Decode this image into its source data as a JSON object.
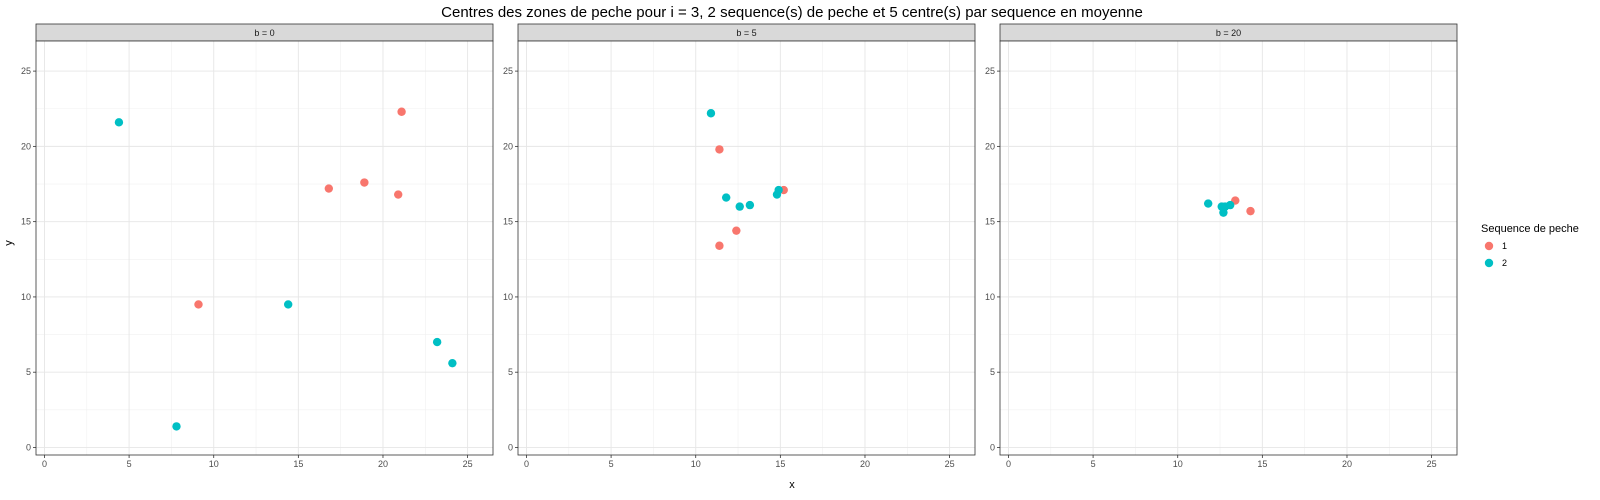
{
  "chart_data": {
    "type": "scatter",
    "title": "Centres des zones de peche pour i = 3, 2 sequence(s) de peche et 5 centre(s) par sequence en moyenne",
    "xlabel": "x",
    "ylabel": "y",
    "xlim": [
      -0.5,
      26.5
    ],
    "ylim": [
      -0.5,
      27
    ],
    "xticks": [
      0,
      5,
      10,
      15,
      20,
      25
    ],
    "yticks": [
      0,
      5,
      10,
      15,
      20,
      25
    ],
    "grid": true,
    "legend": {
      "title": "Sequence de peche",
      "position": "right",
      "entries": [
        {
          "label": "1",
          "color": "#F8766D"
        },
        {
          "label": "2",
          "color": "#00BFC4"
        }
      ]
    },
    "facets": [
      {
        "label": "b = 0",
        "series": [
          {
            "name": "1",
            "color": "#F8766D",
            "points": [
              [
                21.1,
                22.3
              ],
              [
                16.8,
                17.2
              ],
              [
                18.9,
                17.6
              ],
              [
                20.9,
                16.8
              ],
              [
                9.1,
                9.5
              ]
            ]
          },
          {
            "name": "2",
            "color": "#00BFC4",
            "points": [
              [
                4.4,
                21.6
              ],
              [
                14.4,
                9.5
              ],
              [
                23.2,
                7.0
              ],
              [
                24.1,
                5.6
              ],
              [
                7.8,
                1.4
              ]
            ]
          }
        ]
      },
      {
        "label": "b = 5",
        "series": [
          {
            "name": "1",
            "color": "#F8766D",
            "points": [
              [
                11.4,
                19.8
              ],
              [
                15.2,
                17.1
              ],
              [
                12.4,
                14.4
              ],
              [
                11.4,
                13.4
              ]
            ]
          },
          {
            "name": "2",
            "color": "#00BFC4",
            "points": [
              [
                10.9,
                22.2
              ],
              [
                11.8,
                16.6
              ],
              [
                12.6,
                16.0
              ],
              [
                13.2,
                16.1
              ],
              [
                14.8,
                16.8
              ],
              [
                14.9,
                17.1
              ]
            ]
          }
        ]
      },
      {
        "label": "b = 20",
        "series": [
          {
            "name": "1",
            "color": "#F8766D",
            "points": [
              [
                13.4,
                16.4
              ],
              [
                14.3,
                15.7
              ]
            ]
          },
          {
            "name": "2",
            "color": "#00BFC4",
            "points": [
              [
                11.8,
                16.2
              ],
              [
                12.6,
                16.0
              ],
              [
                12.8,
                16.0
              ],
              [
                13.1,
                16.1
              ],
              [
                12.7,
                15.6
              ]
            ]
          }
        ]
      }
    ]
  }
}
